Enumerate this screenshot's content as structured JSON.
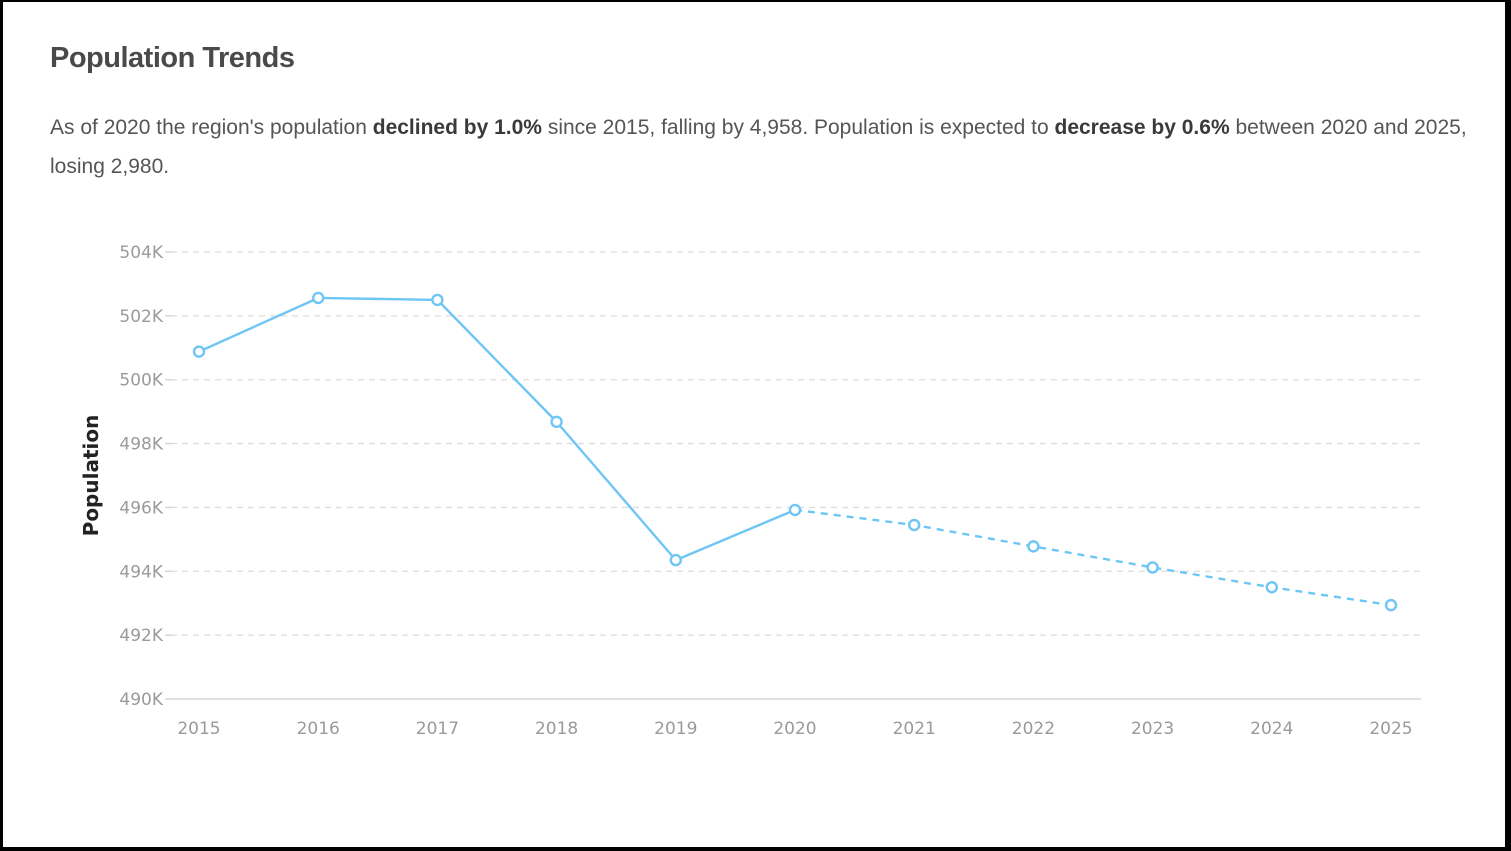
{
  "header": {
    "title": "Population Trends"
  },
  "summary": {
    "t1": "As of 2020 the region's population ",
    "b1": "declined by 1.0%",
    "t2": " since 2015, falling by 4,958. Population is expected to ",
    "b2": "decrease by 0.6%",
    "t3": " between 2020 and 2025, losing 2,980."
  },
  "chart_data": {
    "type": "line",
    "ylabel": "Population",
    "xlabel": "",
    "categories": [
      "2015",
      "2016",
      "2017",
      "2018",
      "2019",
      "2020",
      "2021",
      "2022",
      "2023",
      "2024",
      "2025"
    ],
    "series": [
      {
        "values": [
          500880,
          502560,
          502500,
          498680,
          494350,
          495920,
          495450,
          494780,
          494120,
          493500,
          492940
        ],
        "projected_from_index": 5,
        "color": "#6ec6f5"
      }
    ],
    "ylim": [
      490000,
      504000
    ],
    "yticks": [
      490000,
      492000,
      494000,
      496000,
      498000,
      500000,
      502000,
      504000
    ],
    "ytick_labels": [
      "490K",
      "492K",
      "494K",
      "496K",
      "498K",
      "500K",
      "502K",
      "504K"
    ],
    "grid": true,
    "legend": "none"
  }
}
